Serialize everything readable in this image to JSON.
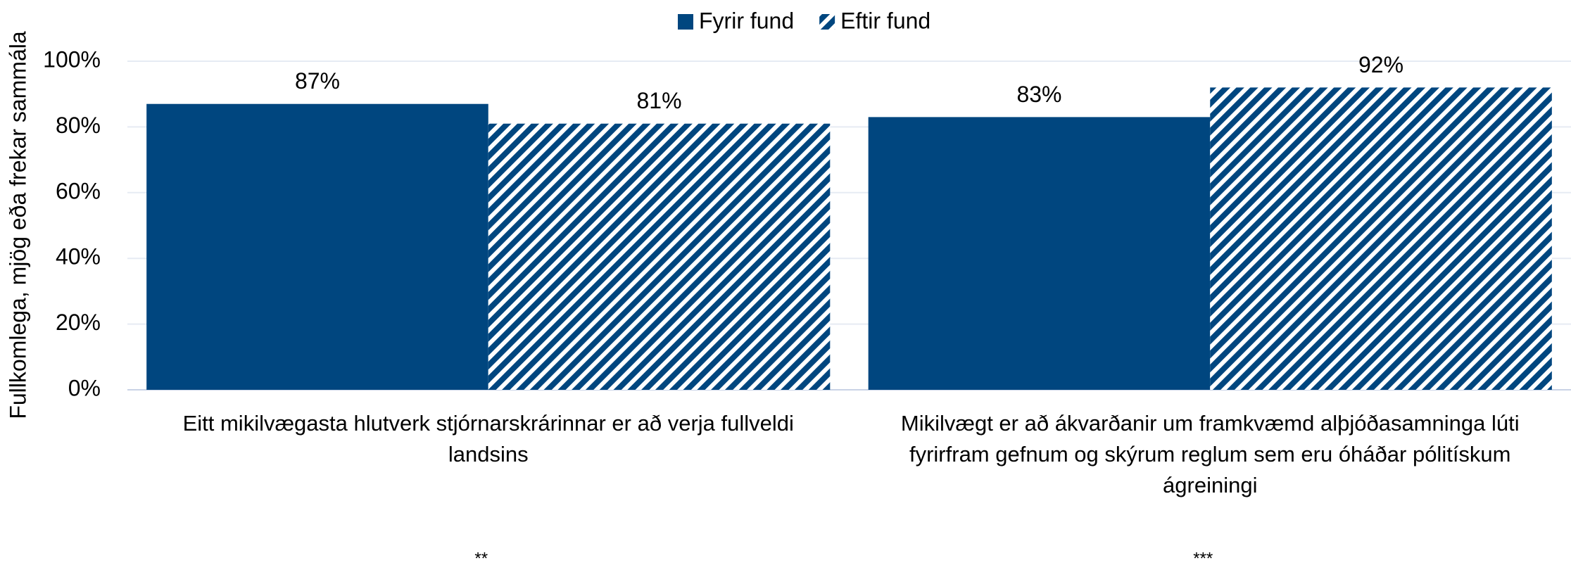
{
  "chart_data": {
    "type": "bar",
    "ylabel": "Fullkomlega, mjög eða frekar sammála",
    "categories": [
      "Eitt mikilvægasta hlutverk stjórnarskrárinnar er að verja fullveldi landsins",
      "Mikilvægt er að ákvarðanir um framkvæmd alþjóðasamninga lúti fyrirfram gefnum og skýrum reglum sem eru óháðar pólitískum ágreiningi"
    ],
    "annotations": [
      "**",
      "***"
    ],
    "series": [
      {
        "name": "Fyrir fund",
        "color": "#00467f",
        "pattern": "solid",
        "values": [
          87,
          83
        ],
        "value_labels": [
          "87%",
          "83%"
        ]
      },
      {
        "name": "Eftir fund",
        "color": "#00467f",
        "pattern": "hatch",
        "values": [
          81,
          92
        ],
        "value_labels": [
          "81%",
          "92%"
        ]
      }
    ],
    "ylim": [
      0,
      100
    ],
    "yticks": [
      {
        "value": 0,
        "label": "0%"
      },
      {
        "value": 20,
        "label": "20%"
      },
      {
        "value": 40,
        "label": "40%"
      },
      {
        "value": 60,
        "label": "60%"
      },
      {
        "value": 80,
        "label": "80%"
      },
      {
        "value": 100,
        "label": "100%"
      }
    ],
    "grid": true,
    "legend": "top"
  }
}
